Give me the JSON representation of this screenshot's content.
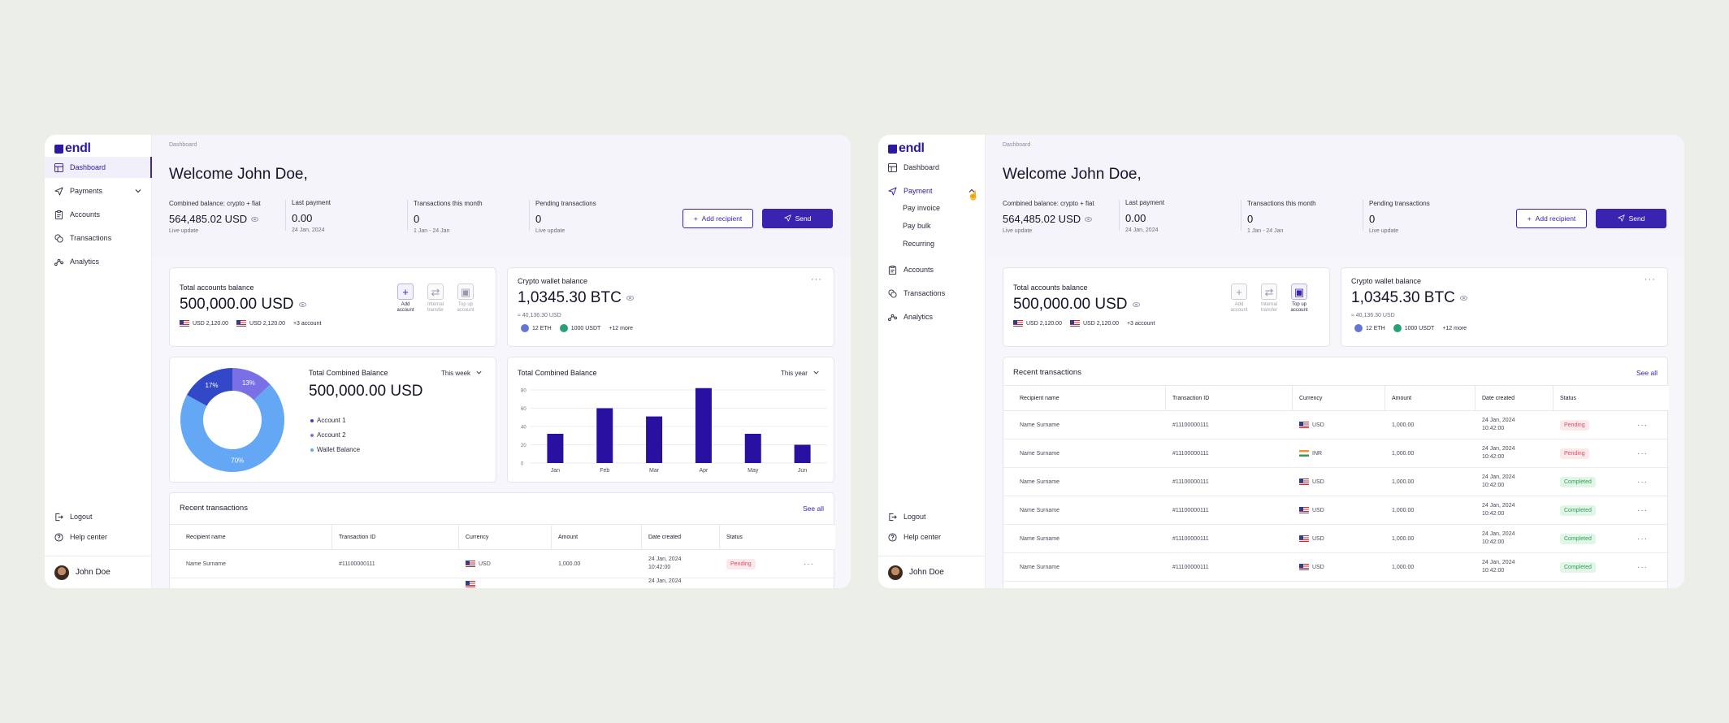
{
  "colors": {
    "accent": "#3a23b0",
    "bar": "#2a10a0",
    "pending": "#d9506a",
    "completed": "#2e9f55",
    "donut_account1": "#3348c8",
    "donut_account2": "#7b6fe6",
    "donut_wallet": "#64a8f5"
  },
  "brand": {
    "name": "endl"
  },
  "screen_a": {
    "nav": {
      "dashboard": "Dashboard",
      "payments": "Payments",
      "accounts": "Accounts",
      "transactions": "Transactions",
      "analytics": "Analytics",
      "logout": "Logout",
      "help": "Help center"
    },
    "user": "John Doe",
    "breadcrumb": "Dashboard",
    "welcome": "Welcome John Doe,",
    "stats": {
      "combined_label": "Combined balance: crypto + fiat",
      "combined_value": "564,485.02 USD",
      "combined_sub": "Live update",
      "last_label": "Last payment",
      "last_value": "0.00",
      "last_sub": "24 Jan, 2024",
      "tx_label": "Transactions this month",
      "tx_value": "0",
      "tx_sub": "1 Jan - 24 Jan",
      "pending_label": "Pending transactions",
      "pending_value": "0",
      "pending_sub": "Live update"
    },
    "buttons": {
      "add_recipient": "Add recipient",
      "send": "Send"
    },
    "accounts_card": {
      "title": "Total accounts balance",
      "value": "500,000.00 USD",
      "pill1": "USD 2,120.00",
      "pill2": "USD 2,120.00",
      "more": "+3 account",
      "actions": [
        "Add account",
        "Internal transfer",
        "Top up account"
      ]
    },
    "crypto_card": {
      "title": "Crypto wallet balance",
      "value": "1,0345.30 BTC",
      "sub": "≈ 40,136.30 USD",
      "eth": "12 ETH",
      "usdt": "1000 USDT",
      "more": "+12 more"
    },
    "donut_card": {
      "title": "Total Combined Balance",
      "value": "500,000.00 USD",
      "period": "This week",
      "legend": [
        "Account 1",
        "Account 2",
        "Wallet Balance"
      ]
    },
    "bar_card": {
      "title": "Total Combined Balance",
      "period": "This year"
    },
    "recent": {
      "title": "Recent transactions",
      "see_all": "See all",
      "headers": [
        "Recipient name",
        "Transaction ID",
        "Currency",
        "Amount",
        "Date created",
        "Status"
      ],
      "rows": [
        {
          "name": "Name Surname",
          "id": "#11100000111",
          "currency": "USD",
          "amount": "1,000.00",
          "date": "24 Jan, 2024",
          "time": "10:42:00",
          "status": "Pending"
        },
        {
          "name": "",
          "id": "",
          "currency": "",
          "amount": "",
          "date": "24 Jan, 2024",
          "time": "",
          "status": ""
        }
      ]
    }
  },
  "screen_b": {
    "nav": {
      "dashboard": "Dashboard",
      "payment": "Payment",
      "sub": [
        "Pay invoice",
        "Pay bulk",
        "Recurring"
      ],
      "accounts": "Accounts",
      "transactions": "Transactions",
      "analytics": "Analytics",
      "logout": "Logout",
      "help": "Help center"
    },
    "user": "John Doe",
    "breadcrumb": "Dashboard",
    "welcome": "Welcome John Doe,",
    "stats": {
      "combined_label": "Combined balance: crypto + fiat",
      "combined_value": "564,485.02 USD",
      "combined_sub": "Live update",
      "last_label": "Last payment",
      "last_value": "0.00",
      "last_sub": "24 Jan, 2024",
      "tx_label": "Transactions this month",
      "tx_value": "0",
      "tx_sub": "1 Jan - 24 Jan",
      "pending_label": "Pending transactions",
      "pending_value": "0",
      "pending_sub": "Live update"
    },
    "buttons": {
      "add_recipient": "Add recipient",
      "send": "Send"
    },
    "accounts_card": {
      "title": "Total accounts balance",
      "value": "500,000.00 USD",
      "pill1": "USD 2,120.00",
      "pill2": "USD 2,120.00",
      "more": "+3 account",
      "actions": [
        "Add account",
        "Internal transfer",
        "Top up account"
      ]
    },
    "crypto_card": {
      "title": "Crypto wallet balance",
      "value": "1,0345.30 BTC",
      "sub": "≈ 40,136.30 USD",
      "eth": "12 ETH",
      "usdt": "1000 USDT",
      "more": "+12 more"
    },
    "recent": {
      "title": "Recent transactions",
      "see_all": "See all",
      "headers": [
        "Recipient name",
        "Transaction ID",
        "Currency",
        "Amount",
        "Date created",
        "Status"
      ],
      "rows": [
        {
          "name": "Name Surname",
          "id": "#11100000111",
          "currency": "USD",
          "flag": "us",
          "amount": "1,000.00",
          "date": "24 Jan, 2024",
          "time": "10:42:00",
          "status": "Pending"
        },
        {
          "name": "Name Surname",
          "id": "#11100000111",
          "currency": "INR",
          "flag": "in",
          "amount": "1,000.00",
          "date": "24 Jan, 2024",
          "time": "10:42:00",
          "status": "Pending"
        },
        {
          "name": "Name Surname",
          "id": "#11100000111",
          "currency": "USD",
          "flag": "us",
          "amount": "1,000.00",
          "date": "24 Jan, 2024",
          "time": "10:42:00",
          "status": "Completed"
        },
        {
          "name": "Name Surname",
          "id": "#11100000111",
          "currency": "USD",
          "flag": "us",
          "amount": "1,000.00",
          "date": "24 Jan, 2024",
          "time": "10:42:00",
          "status": "Completed"
        },
        {
          "name": "Name Surname",
          "id": "#11100000111",
          "currency": "USD",
          "flag": "us",
          "amount": "1,000.00",
          "date": "24 Jan, 2024",
          "time": "10:42:00",
          "status": "Completed"
        },
        {
          "name": "Name Surname",
          "id": "#11100000111",
          "currency": "USD",
          "flag": "us",
          "amount": "1,000.00",
          "date": "24 Jan, 2024",
          "time": "10:42:00",
          "status": "Completed"
        }
      ]
    }
  },
  "chart_data": [
    {
      "type": "pie",
      "title": "Total Combined Balance",
      "categories": [
        "Account 1",
        "Account 2",
        "Wallet Balance"
      ],
      "values": [
        17,
        13,
        70
      ],
      "labels": [
        "17%",
        "13%",
        "70%"
      ],
      "legend": "right"
    },
    {
      "type": "bar",
      "title": "Total Combined Balance",
      "categories": [
        "Jan",
        "Feb",
        "Mar",
        "Apr",
        "May",
        "Jun"
      ],
      "values": [
        32,
        60,
        51,
        82,
        32,
        20
      ],
      "yticks": [
        "80",
        "60",
        "40",
        "20",
        "0"
      ],
      "ylim": [
        0,
        80
      ],
      "grid": true
    }
  ]
}
